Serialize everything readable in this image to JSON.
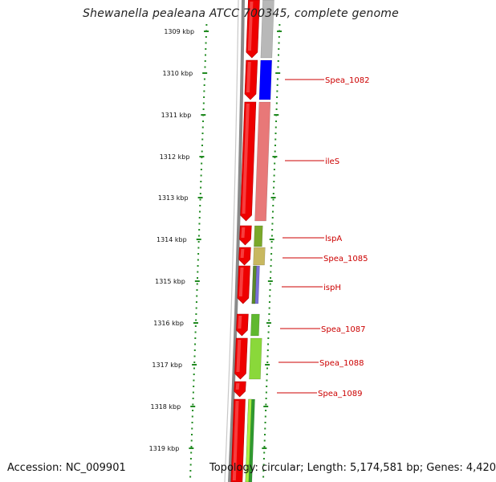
{
  "title": "Shewanella pealeana ATCC 700345, complete genome",
  "footer": {
    "accession": "Accession: NC_009901",
    "topology": "Topology: circular; Length: 5,174,581 bp; Genes: 4,420"
  },
  "ruler": {
    "ticks": [
      "1309 kbp",
      "1310 kbp",
      "1311 kbp",
      "1312 kbp",
      "1313 kbp",
      "1314 kbp",
      "1315 kbp",
      "1316 kbp",
      "1317 kbp",
      "1318 kbp",
      "1319 kbp"
    ]
  },
  "genes": [
    {
      "label": "Spea_1082",
      "color": "#0000ff"
    },
    {
      "label": "ileS",
      "color": "#e87878"
    },
    {
      "label": "lspA",
      "color": "#7aa82a"
    },
    {
      "label": "Spea_1085",
      "color": "#c8b860"
    },
    {
      "label": "ispH",
      "color": "#7a70d8"
    },
    {
      "label": "Spea_1087",
      "color": "#60b830"
    },
    {
      "label": "Spea_1088",
      "color": "#8ad83a"
    },
    {
      "label": "Spea_1089",
      "color": "#ffffff"
    }
  ],
  "colors": {
    "backbone": "#8a8a8a",
    "forward_strand": "#ee0000",
    "tick": "#228b22",
    "label": "#cc0000",
    "grey_feature": "#b8b8b8"
  }
}
